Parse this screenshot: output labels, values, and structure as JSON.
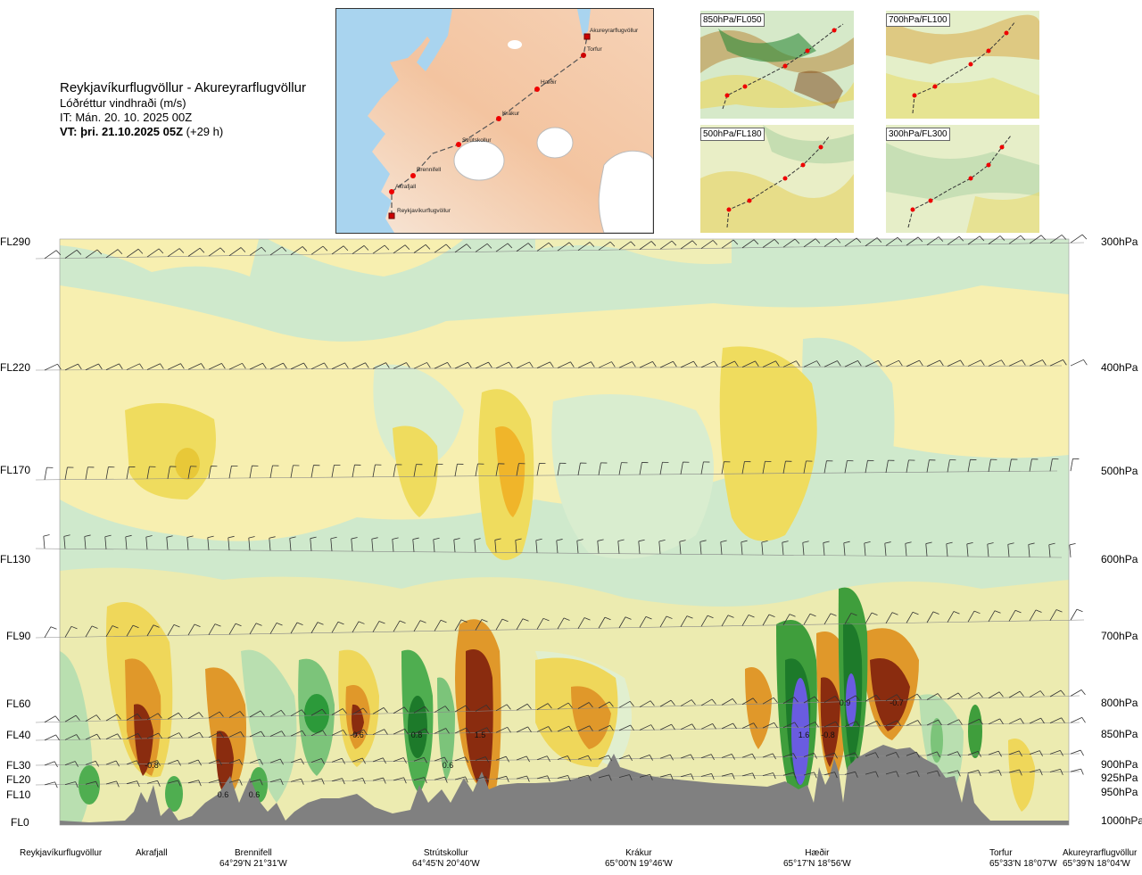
{
  "header": {
    "route": "Reykjavíkurflugvöllur - Akureyrarflugvöllur",
    "variable": "Lóðréttur vindhraði (m/s)",
    "init_time": "IT: Mán. 20. 10. 2025 00Z",
    "valid_time": "VT: þri. 21.10.2025 05Z",
    "lead": "(+29 h)"
  },
  "map": {
    "points": [
      {
        "name": "Akureyrarflugvöllur"
      },
      {
        "name": "Torfur"
      },
      {
        "name": "Hæðir"
      },
      {
        "name": "Krákur"
      },
      {
        "name": "Strútskollur"
      },
      {
        "name": "Brennifell"
      },
      {
        "name": "Akrafjall"
      },
      {
        "name": "Reykjavíkurflugvöllur"
      }
    ]
  },
  "thumbnails": [
    {
      "label": "850hPa/FL050"
    },
    {
      "label": "700hPa/FL100"
    },
    {
      "label": "500hPa/FL180"
    },
    {
      "label": "300hPa/FL300"
    }
  ],
  "chart_data": {
    "type": "heatmap",
    "title": "Lóðréttur vindhraði (m/s)",
    "y_levels": [
      {
        "fl": "FL290",
        "hpa": "300hPa"
      },
      {
        "fl": "FL220",
        "hpa": "400hPa"
      },
      {
        "fl": "FL170",
        "hpa": "500hPa"
      },
      {
        "fl": "FL130",
        "hpa": "600hPa"
      },
      {
        "fl": "FL90",
        "hpa": "700hPa"
      },
      {
        "fl": "FL60",
        "hpa": "800hPa"
      },
      {
        "fl": "FL40",
        "hpa": "850hPa"
      },
      {
        "fl": "FL30",
        "hpa": "900hPa"
      },
      {
        "fl": "FL20",
        "hpa": "925hPa"
      },
      {
        "fl": "FL10",
        "hpa": "950hPa"
      },
      {
        "fl": "FL0",
        "hpa": "1000hPa"
      }
    ],
    "stations": [
      {
        "name": "Reykjavíkurflugvöllur",
        "coord": ""
      },
      {
        "name": "Akrafjall",
        "coord": ""
      },
      {
        "name": "Brennifell",
        "coord": "64°29'N 21°31'W"
      },
      {
        "name": "Strútskollur",
        "coord": "64°45'N 20°40'W"
      },
      {
        "name": "Krákur",
        "coord": "65°00'N 19°46'W"
      },
      {
        "name": "Hæðir",
        "coord": "65°17'N 18°56'W"
      },
      {
        "name": "Torfur",
        "coord": "65°33'N 18°07'W"
      },
      {
        "name": "Akureyrarflugvöllur",
        "coord": "65°39'N 18°04'W"
      }
    ],
    "value_labels": [
      "-0.8",
      "0.6",
      "0.6",
      "-0.6",
      "0.8",
      "1.5",
      "0.6",
      "1.6",
      "-0.8",
      "0.9",
      "-0.7"
    ]
  }
}
